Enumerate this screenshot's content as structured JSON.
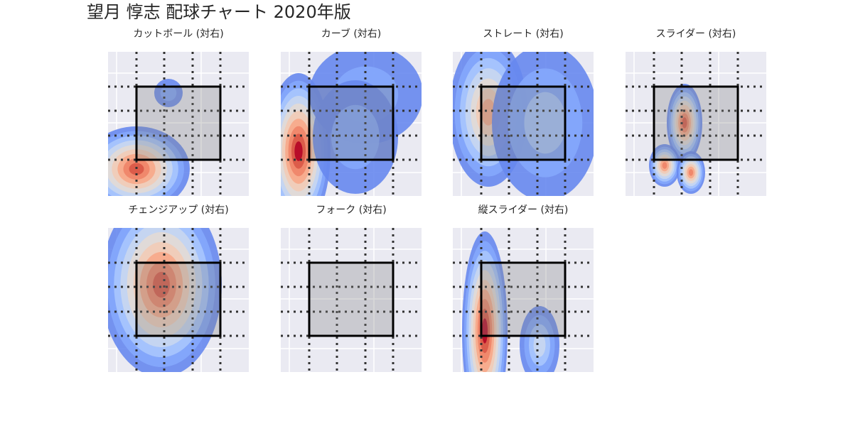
{
  "title": "望月 惇志 配球チャート 2020年版",
  "chart_data": [
    {
      "type": "kde",
      "title": "カットボール (対右)"
    },
    {
      "type": "kde",
      "title": "カーブ (対右)"
    },
    {
      "type": "kde",
      "title": "ストレート (対右)"
    },
    {
      "type": "kde",
      "title": "スライダー (対右)"
    },
    {
      "type": "kde",
      "title": "チェンジアップ (対右)"
    },
    {
      "type": "kde",
      "title": "フォーク (対右)"
    },
    {
      "type": "kde",
      "title": "縦スライダー (対右)"
    }
  ]
}
